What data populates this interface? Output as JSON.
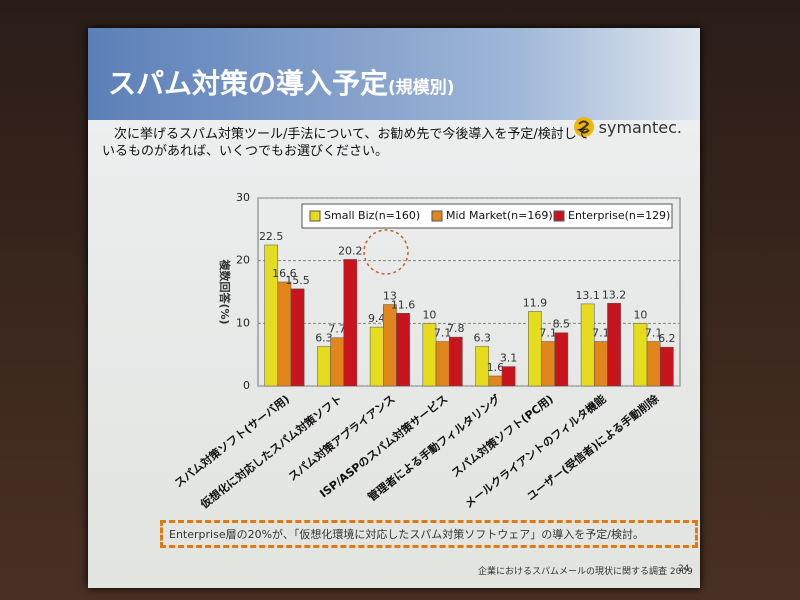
{
  "slide": {
    "title": "スパム対策の導入予定",
    "title_suffix": "(規模別)",
    "logo": "symantec.",
    "question": "次に挙げるスパム対策ツール/手法について、お勧め先で今後導入を予定/検討しているものがあれば、いくつでもお選びください。",
    "note": "Enterprise層の20%が、「仮想化環境に対応したスパム対策ソフトウェア」の導入を予定/検討。",
    "footer": "企業におけるスパムメールの現状に関する調査 2009",
    "page_number": 24
  },
  "chart_data": {
    "type": "bar",
    "y_label": "複数回答(%)",
    "categories": [
      "スパム対策ソフト(サーバ用)",
      "仮想化に対応したスパム対策ソフト",
      "スパム対策アプライアンス",
      "ISP/ASPのスパム対策サービス",
      "管理者による手動フィルタリング",
      "スパム対策ソフト(PC用)",
      "メールクライアントのフィルタ機能",
      "ユーザー(受信者)による手動削除"
    ],
    "series": [
      {
        "name": "Small Biz(n=160)",
        "color": "#e6dc1e",
        "values": [
          22.5,
          6.3,
          9.4,
          10,
          6.3,
          11.9,
          13.1,
          10
        ]
      },
      {
        "name": "Mid Market(n=169)",
        "color": "#e0861c",
        "values": [
          16.6,
          7.7,
          13,
          7.1,
          1.6,
          7.1,
          7.1,
          7.1
        ]
      },
      {
        "name": "Enterprise(n=129)",
        "color": "#c8141c",
        "values": [
          15.5,
          20.2,
          11.6,
          7.8,
          3.1,
          8.5,
          13.2,
          6.2
        ]
      }
    ],
    "ylim": [
      0,
      30
    ],
    "yticks": [
      0,
      10,
      20,
      30
    ],
    "grid": true,
    "legend": "top-right"
  }
}
